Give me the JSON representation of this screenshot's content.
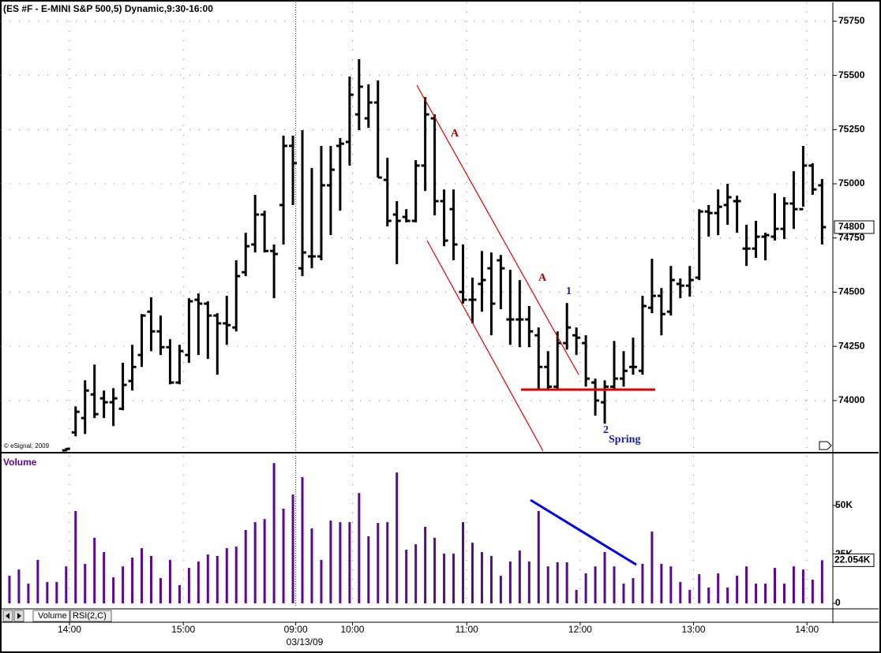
{
  "chart_data": [
    {
      "type": "ohlc",
      "title": "(ES #F - E-MINI S&P 500,5) Dynamic,9:30-16:00",
      "credit": "© eSignal, 2009",
      "annotations": [
        "A",
        "A",
        "1",
        "2",
        "Spring"
      ],
      "last_price": 74800,
      "xlim": [
        -1,
        87.14
      ],
      "ylim": [
        73763,
        75848
      ],
      "yticks": [
        74000,
        74250,
        74500,
        74750,
        75000,
        75250,
        75500,
        75750
      ],
      "grid": true,
      "color": "#000000",
      "open": [
        null,
        null,
        null,
        null,
        null,
        null,
        73770,
        73853,
        73919,
        74028,
        74010,
        73992,
        73962,
        74090,
        74210,
        74410,
        74319,
        74246,
        74083,
        74210,
        74465,
        74447,
        74392,
        74356,
        74337,
        74592,
        74720,
        74858,
        74690,
        74902,
        75175,
        74610,
        74665,
        74665,
        74993,
        75175,
        75193,
        75320,
        75302,
        75375,
        75018,
        74858,
        74847,
        74829,
        75084,
        75302,
        74920,
        74883,
        74501,
        74465,
        74538,
        74610,
        74647,
        74374,
        74374,
        74374,
        74301,
        74155,
        74064,
        74265,
        74301,
        74265,
        74083,
        73992,
        74064,
        74101,
        74155,
        74137,
        74428,
        74483,
        74410,
        74538,
        74530,
        74567,
        74872,
        74865,
        74902,
        74920,
        74701,
        74701,
        74756,
        74756,
        74792,
        74909,
        74883,
        75084,
        74993
      ],
      "high": [
        null,
        null,
        null,
        null,
        null,
        null,
        73780,
        73973,
        74093,
        74166,
        74046,
        74057,
        74174,
        74257,
        74399,
        74476,
        74392,
        74283,
        74257,
        74472,
        74494,
        74458,
        74403,
        74483,
        74647,
        74774,
        74949,
        74876,
        74720,
        75222,
        75222,
        75247,
        75073,
        75175,
        75175,
        75211,
        75495,
        75575,
        75459,
        75477,
        75120,
        74920,
        74883,
        75109,
        75400,
        75320,
        74974,
        74974,
        74720,
        74567,
        74690,
        74683,
        74672,
        74603,
        74556,
        74436,
        74337,
        74228,
        74319,
        74450,
        74337,
        74301,
        74101,
        74093,
        74275,
        74228,
        74290,
        74483,
        74654,
        74519,
        74621,
        74563,
        74621,
        74883,
        74902,
        74974,
        75000,
        74945,
        74811,
        74829,
        74774,
        74956,
        74938,
        75058,
        75175,
        75095,
        75022
      ],
      "low": [
        null,
        null,
        null,
        null,
        null,
        null,
        73766,
        73835,
        73846,
        73919,
        73919,
        73882,
        73955,
        74046,
        74155,
        74228,
        74210,
        74075,
        74075,
        74174,
        74210,
        74192,
        74119,
        74257,
        74319,
        74574,
        74683,
        74683,
        74472,
        74720,
        74902,
        74574,
        74610,
        74647,
        74763,
        74876,
        75084,
        75247,
        75258,
        75029,
        74803,
        74629,
        74822,
        74822,
        74967,
        74854,
        74712,
        74647,
        74447,
        74356,
        74410,
        74301,
        74421,
        74257,
        74246,
        74246,
        74054,
        74046,
        74046,
        74235,
        74210,
        74064,
        73930,
        73893,
        74046,
        74064,
        74119,
        74119,
        74403,
        74301,
        74392,
        74472,
        74479,
        74556,
        74756,
        74763,
        74811,
        74774,
        74621,
        74658,
        74647,
        74738,
        74745,
        74792,
        74894,
        74949,
        74720
      ],
      "close": [
        null,
        null,
        null,
        null,
        null,
        null,
        73777,
        73948,
        74046,
        73937,
        73992,
        74010,
        74072,
        74155,
        74392,
        74319,
        74246,
        74083,
        74228,
        74458,
        74447,
        74392,
        74356,
        74348,
        74574,
        74712,
        74858,
        74690,
        74676,
        75175,
        75095,
        74683,
        74665,
        74993,
        75065,
        75185,
        75411,
        75448,
        75375,
        75029,
        74829,
        74829,
        74829,
        75084,
        75320,
        74920,
        74738,
        74720,
        74465,
        74465,
        74556,
        74447,
        74610,
        74374,
        74374,
        74319,
        74155,
        74064,
        74265,
        74337,
        74290,
        74101,
        74000,
        74064,
        74101,
        74137,
        74155,
        74436,
        74483,
        74399,
        74556,
        74530,
        74556,
        74872,
        74865,
        74894,
        74938,
        74920,
        74701,
        74756,
        74763,
        74792,
        74909,
        74883,
        75084,
        74974,
        74800
      ]
    },
    {
      "type": "bar",
      "title": "Volume",
      "tabs": [
        "Volume",
        "RSI(2,C)"
      ],
      "date_label": "03/13/09",
      "last_label": "22.054K",
      "color": "#5a0a8c",
      "xlim": [
        -1,
        87.14
      ],
      "ylim": [
        -2000,
        75400
      ],
      "yticks": [
        {
          "value": 0,
          "label": "0"
        },
        {
          "value": 25000,
          "label": "25K"
        },
        {
          "value": 50000,
          "label": "50K"
        }
      ],
      "xticks": [
        {
          "value": 6.35,
          "label": "14:00"
        },
        {
          "value": 18.4,
          "label": "15:00"
        },
        {
          "value": 30.3,
          "label": "09:00"
        },
        {
          "value": 36.3,
          "label": "10:00"
        },
        {
          "value": 48.4,
          "label": "11:00"
        },
        {
          "value": 60.4,
          "label": "12:00"
        },
        {
          "value": 72.4,
          "label": "13:00"
        },
        {
          "value": 84.4,
          "label": "14:00"
        }
      ],
      "values": [
        14100,
        17300,
        10100,
        22200,
        10900,
        10900,
        18900,
        47200,
        20200,
        33500,
        26200,
        13300,
        18900,
        23400,
        28200,
        24200,
        12900,
        22200,
        9300,
        18100,
        21400,
        25000,
        24200,
        28200,
        29000,
        37500,
        41500,
        43100,
        71700,
        48400,
        55600,
        64500,
        38300,
        22200,
        42300,
        41500,
        41500,
        56400,
        34300,
        41100,
        41500,
        66900,
        27400,
        30200,
        39100,
        33500,
        25400,
        25400,
        41500,
        31000,
        26200,
        24200,
        14100,
        21400,
        27000,
        21400,
        47200,
        18900,
        21000,
        21000,
        6900,
        15300,
        18900,
        26200,
        18900,
        10100,
        12900,
        20200,
        36700,
        20200,
        18900,
        10900,
        6900,
        14900,
        8100,
        15300,
        8100,
        14100,
        18900,
        10100,
        10100,
        18100,
        10100,
        18900,
        17300,
        12100,
        22054
      ]
    }
  ]
}
